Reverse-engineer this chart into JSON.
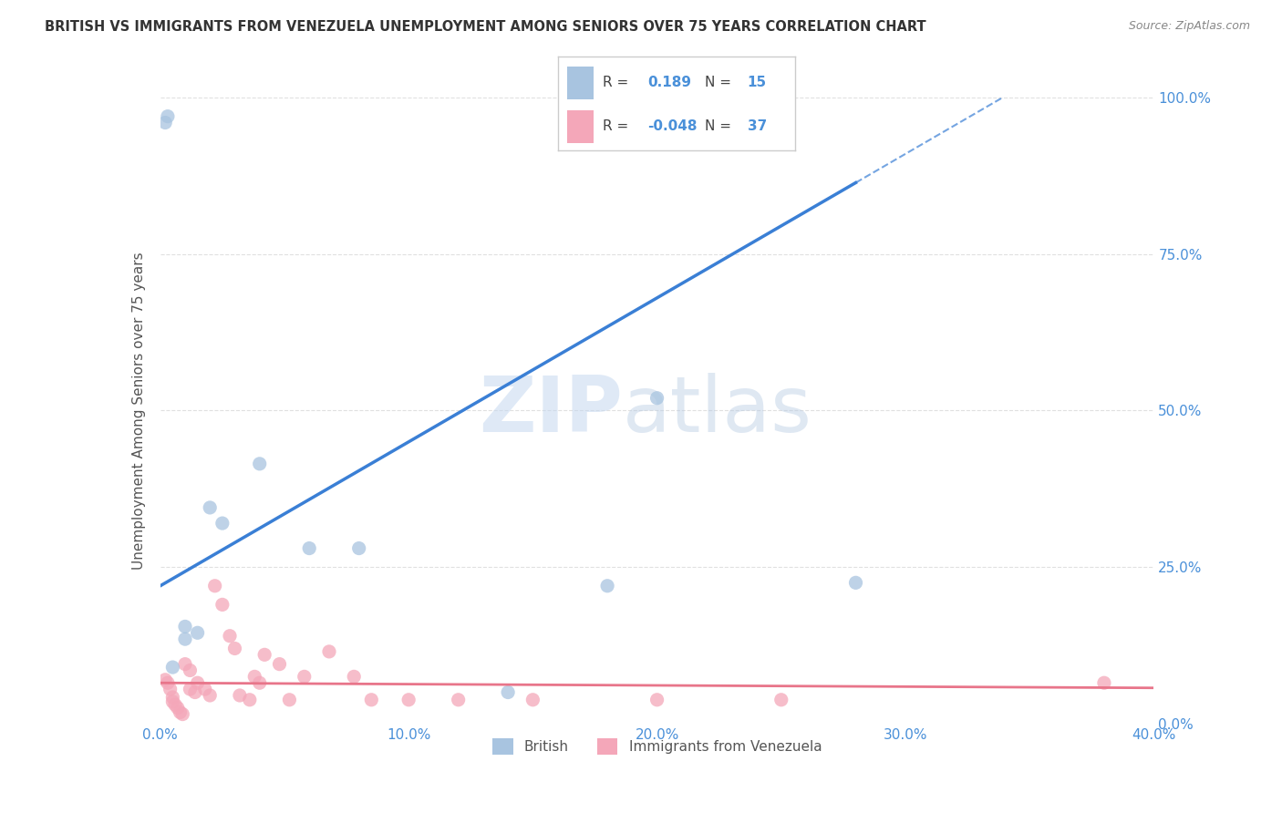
{
  "title": "BRITISH VS IMMIGRANTS FROM VENEZUELA UNEMPLOYMENT AMONG SENIORS OVER 75 YEARS CORRELATION CHART",
  "source": "Source: ZipAtlas.com",
  "ylabel": "Unemployment Among Seniors over 75 years",
  "xlabel_ticks": [
    "0.0%",
    "10.0%",
    "20.0%",
    "30.0%",
    "40.0%"
  ],
  "ylabel_ticks": [
    "0.0%",
    "25.0%",
    "50.0%",
    "75.0%",
    "100.0%"
  ],
  "xlim": [
    0.0,
    0.4
  ],
  "ylim": [
    0.0,
    1.0
  ],
  "british_R": 0.189,
  "british_N": 15,
  "venezuela_R": -0.048,
  "venezuela_N": 37,
  "british_color": "#a8c4e0",
  "venezuela_color": "#f4a7b9",
  "british_line_color": "#3a7fd5",
  "venezuela_line_color": "#e8758a",
  "british_line_solid_end": 0.28,
  "british_line_y0": 0.22,
  "british_line_slope": 2.3,
  "venezuela_line_y0": 0.065,
  "venezuela_line_slope": -0.02,
  "british_scatter": [
    [
      0.002,
      0.96
    ],
    [
      0.003,
      0.97
    ],
    [
      0.04,
      0.415
    ],
    [
      0.02,
      0.345
    ],
    [
      0.025,
      0.32
    ],
    [
      0.06,
      0.28
    ],
    [
      0.08,
      0.28
    ],
    [
      0.18,
      0.22
    ],
    [
      0.14,
      0.05
    ],
    [
      0.28,
      0.225
    ],
    [
      0.2,
      0.52
    ],
    [
      0.01,
      0.135
    ],
    [
      0.01,
      0.155
    ],
    [
      0.015,
      0.145
    ],
    [
      0.005,
      0.09
    ]
  ],
  "venezuela_scatter": [
    [
      0.002,
      0.07
    ],
    [
      0.003,
      0.065
    ],
    [
      0.004,
      0.055
    ],
    [
      0.005,
      0.042
    ],
    [
      0.005,
      0.035
    ],
    [
      0.006,
      0.03
    ],
    [
      0.007,
      0.025
    ],
    [
      0.008,
      0.018
    ],
    [
      0.009,
      0.015
    ],
    [
      0.01,
      0.095
    ],
    [
      0.012,
      0.085
    ],
    [
      0.012,
      0.055
    ],
    [
      0.014,
      0.05
    ],
    [
      0.015,
      0.065
    ],
    [
      0.018,
      0.055
    ],
    [
      0.02,
      0.045
    ],
    [
      0.022,
      0.22
    ],
    [
      0.025,
      0.19
    ],
    [
      0.028,
      0.14
    ],
    [
      0.03,
      0.12
    ],
    [
      0.032,
      0.045
    ],
    [
      0.036,
      0.038
    ],
    [
      0.038,
      0.075
    ],
    [
      0.04,
      0.065
    ],
    [
      0.042,
      0.11
    ],
    [
      0.048,
      0.095
    ],
    [
      0.052,
      0.038
    ],
    [
      0.058,
      0.075
    ],
    [
      0.068,
      0.115
    ],
    [
      0.078,
      0.075
    ],
    [
      0.085,
      0.038
    ],
    [
      0.1,
      0.038
    ],
    [
      0.12,
      0.038
    ],
    [
      0.15,
      0.038
    ],
    [
      0.2,
      0.038
    ],
    [
      0.25,
      0.038
    ],
    [
      0.38,
      0.065
    ]
  ],
  "watermark_zip": "ZIP",
  "watermark_atlas": "atlas",
  "scatter_size": 120,
  "background_color": "#ffffff",
  "grid_color": "#dddddd",
  "title_color": "#333333",
  "blue_color": "#4a90d9",
  "tick_color": "#4a90d9",
  "legend_text_color": "#555555"
}
